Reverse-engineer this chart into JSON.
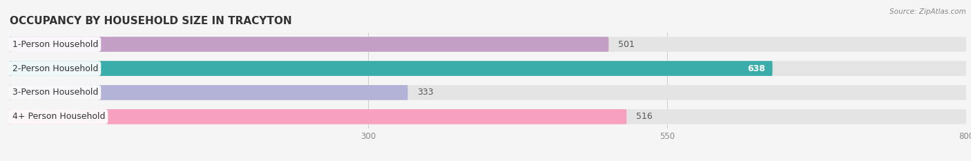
{
  "title": "OCCUPANCY BY HOUSEHOLD SIZE IN TRACYTON",
  "source": "Source: ZipAtlas.com",
  "categories": [
    "1-Person Household",
    "2-Person Household",
    "3-Person Household",
    "4+ Person Household"
  ],
  "values": [
    501,
    638,
    333,
    516
  ],
  "bar_colors": [
    "#c49fc5",
    "#3aadaa",
    "#b3b3d7",
    "#f7a0bf"
  ],
  "xlim": [
    0,
    800
  ],
  "xticks": [
    300,
    550,
    800
  ],
  "background_color": "#f5f5f5",
  "bar_bg_color": "#e4e4e4",
  "title_fontsize": 11,
  "label_fontsize": 9,
  "value_fontsize": 9,
  "bar_height": 0.62
}
